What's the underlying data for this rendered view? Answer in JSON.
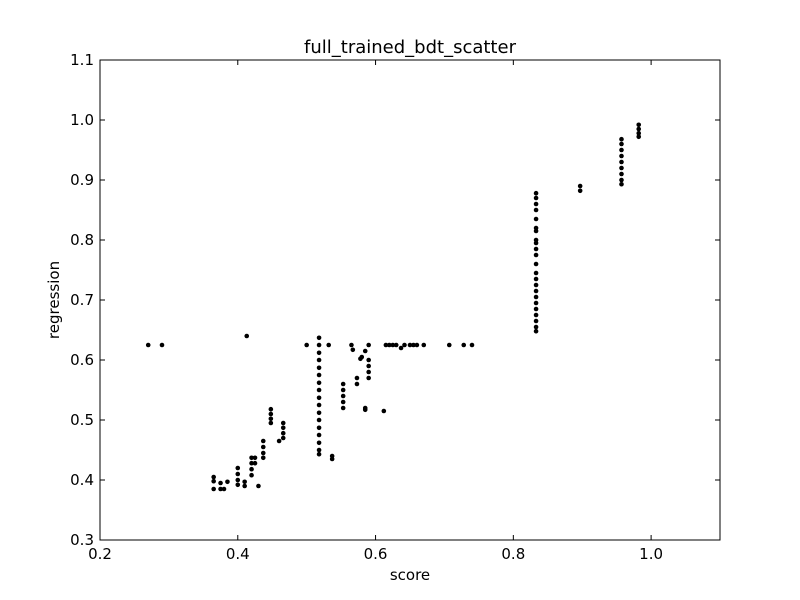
{
  "chart_data": {
    "type": "scatter",
    "title": "full_trained_bdt_scatter",
    "xlabel": "score",
    "ylabel": "regression",
    "xlim": [
      0.2,
      1.1
    ],
    "ylim": [
      0.3,
      1.1
    ],
    "xticks": [
      0.2,
      0.4,
      0.6,
      0.8,
      1.0
    ],
    "xtick_labels": [
      "0.2",
      "0.4",
      "0.6",
      "0.8",
      "1.0"
    ],
    "yticks": [
      0.3,
      0.4,
      0.5,
      0.6,
      0.7,
      0.8,
      0.9,
      1.0,
      1.1
    ],
    "ytick_labels": [
      "0.3",
      "0.4",
      "0.5",
      "0.6",
      "0.7",
      "0.8",
      "0.9",
      "1.0",
      "1.1"
    ],
    "grid": false,
    "marker_color": "#000000",
    "points": [
      [
        0.27,
        0.625
      ],
      [
        0.29,
        0.625
      ],
      [
        0.365,
        0.405
      ],
      [
        0.365,
        0.398
      ],
      [
        0.365,
        0.385
      ],
      [
        0.375,
        0.395
      ],
      [
        0.375,
        0.385
      ],
      [
        0.38,
        0.385
      ],
      [
        0.385,
        0.397
      ],
      [
        0.4,
        0.42
      ],
      [
        0.4,
        0.41
      ],
      [
        0.4,
        0.4
      ],
      [
        0.4,
        0.392
      ],
      [
        0.41,
        0.39
      ],
      [
        0.41,
        0.397
      ],
      [
        0.413,
        0.64
      ],
      [
        0.42,
        0.437
      ],
      [
        0.42,
        0.428
      ],
      [
        0.42,
        0.418
      ],
      [
        0.42,
        0.408
      ],
      [
        0.425,
        0.437
      ],
      [
        0.425,
        0.428
      ],
      [
        0.43,
        0.39
      ],
      [
        0.437,
        0.465
      ],
      [
        0.437,
        0.455
      ],
      [
        0.437,
        0.445
      ],
      [
        0.437,
        0.437
      ],
      [
        0.448,
        0.518
      ],
      [
        0.448,
        0.51
      ],
      [
        0.448,
        0.502
      ],
      [
        0.448,
        0.495
      ],
      [
        0.46,
        0.465
      ],
      [
        0.466,
        0.495
      ],
      [
        0.466,
        0.487
      ],
      [
        0.466,
        0.478
      ],
      [
        0.466,
        0.47
      ],
      [
        0.5,
        0.625
      ],
      [
        0.518,
        0.637
      ],
      [
        0.518,
        0.625
      ],
      [
        0.518,
        0.612
      ],
      [
        0.518,
        0.6
      ],
      [
        0.518,
        0.587
      ],
      [
        0.518,
        0.575
      ],
      [
        0.518,
        0.562
      ],
      [
        0.518,
        0.55
      ],
      [
        0.518,
        0.537
      ],
      [
        0.518,
        0.525
      ],
      [
        0.518,
        0.512
      ],
      [
        0.518,
        0.5
      ],
      [
        0.518,
        0.487
      ],
      [
        0.518,
        0.475
      ],
      [
        0.518,
        0.462
      ],
      [
        0.518,
        0.45
      ],
      [
        0.518,
        0.443
      ],
      [
        0.532,
        0.625
      ],
      [
        0.537,
        0.44
      ],
      [
        0.537,
        0.435
      ],
      [
        0.553,
        0.56
      ],
      [
        0.553,
        0.55
      ],
      [
        0.553,
        0.54
      ],
      [
        0.553,
        0.53
      ],
      [
        0.553,
        0.52
      ],
      [
        0.565,
        0.625
      ],
      [
        0.567,
        0.617
      ],
      [
        0.573,
        0.57
      ],
      [
        0.573,
        0.56
      ],
      [
        0.578,
        0.602
      ],
      [
        0.58,
        0.605
      ],
      [
        0.585,
        0.615
      ],
      [
        0.585,
        0.52
      ],
      [
        0.585,
        0.517
      ],
      [
        0.59,
        0.625
      ],
      [
        0.59,
        0.6
      ],
      [
        0.59,
        0.59
      ],
      [
        0.59,
        0.58
      ],
      [
        0.59,
        0.57
      ],
      [
        0.612,
        0.515
      ],
      [
        0.615,
        0.625
      ],
      [
        0.62,
        0.625
      ],
      [
        0.625,
        0.625
      ],
      [
        0.63,
        0.625
      ],
      [
        0.637,
        0.62
      ],
      [
        0.642,
        0.625
      ],
      [
        0.65,
        0.625
      ],
      [
        0.655,
        0.625
      ],
      [
        0.66,
        0.625
      ],
      [
        0.67,
        0.625
      ],
      [
        0.707,
        0.625
      ],
      [
        0.728,
        0.625
      ],
      [
        0.74,
        0.625
      ],
      [
        0.833,
        0.878
      ],
      [
        0.833,
        0.87
      ],
      [
        0.833,
        0.86
      ],
      [
        0.833,
        0.85
      ],
      [
        0.833,
        0.835
      ],
      [
        0.833,
        0.82
      ],
      [
        0.833,
        0.815
      ],
      [
        0.833,
        0.8
      ],
      [
        0.833,
        0.795
      ],
      [
        0.833,
        0.785
      ],
      [
        0.833,
        0.775
      ],
      [
        0.833,
        0.76
      ],
      [
        0.833,
        0.745
      ],
      [
        0.833,
        0.735
      ],
      [
        0.833,
        0.725
      ],
      [
        0.833,
        0.715
      ],
      [
        0.833,
        0.705
      ],
      [
        0.833,
        0.695
      ],
      [
        0.833,
        0.685
      ],
      [
        0.833,
        0.675
      ],
      [
        0.833,
        0.665
      ],
      [
        0.833,
        0.655
      ],
      [
        0.833,
        0.648
      ],
      [
        0.897,
        0.89
      ],
      [
        0.897,
        0.882
      ],
      [
        0.957,
        0.968
      ],
      [
        0.957,
        0.96
      ],
      [
        0.957,
        0.95
      ],
      [
        0.957,
        0.94
      ],
      [
        0.957,
        0.93
      ],
      [
        0.957,
        0.92
      ],
      [
        0.957,
        0.91
      ],
      [
        0.957,
        0.9
      ],
      [
        0.957,
        0.893
      ],
      [
        0.982,
        0.992
      ],
      [
        0.982,
        0.985
      ],
      [
        0.982,
        0.978
      ],
      [
        0.982,
        0.972
      ]
    ]
  }
}
